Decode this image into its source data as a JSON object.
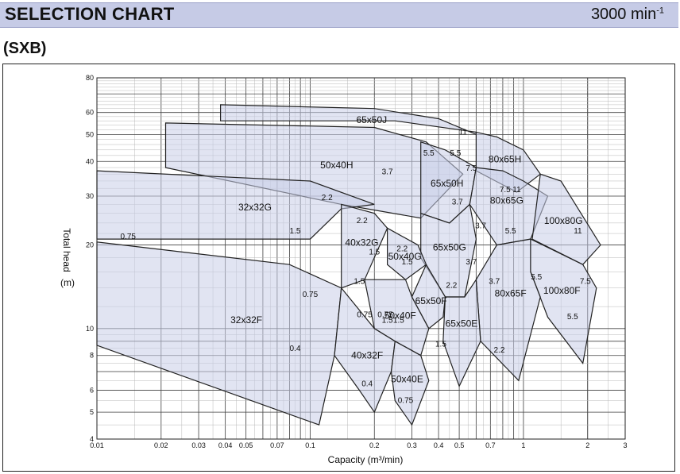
{
  "header": {
    "title": "SELECTION CHART",
    "speed_base": "3000 min",
    "speed_exp": "-1"
  },
  "subtitle": "(SXB)",
  "chart_data": {
    "type": "area",
    "xlabel": "Capacity (m³/min)",
    "ylabel": "Total head",
    "ylabel_unit": "(m)",
    "xscale": "log",
    "yscale": "log",
    "xlim": [
      0.01,
      3
    ],
    "ylim": [
      4,
      80
    ],
    "grid": true,
    "x_ticks": [
      "0.01",
      "0.02",
      "0.03",
      "0.04",
      "0.05",
      "0.07",
      "0.1",
      "0.2",
      "0.3",
      "0.4",
      "0.5",
      "0.7",
      "1",
      "2",
      "3"
    ],
    "x_tick_values": [
      0.01,
      0.02,
      0.03,
      0.04,
      0.05,
      0.07,
      0.1,
      0.2,
      0.3,
      0.4,
      0.5,
      0.7,
      1,
      2,
      3
    ],
    "y_ticks": [
      "4",
      "5",
      "6",
      "8",
      "10",
      "20",
      "30",
      "40",
      "50",
      "60",
      "80"
    ],
    "y_tick_values": [
      4,
      5,
      6,
      8,
      10,
      20,
      30,
      40,
      50,
      60,
      80
    ],
    "regions": [
      {
        "name": "65x50J",
        "vertices": [
          [
            0.038,
            64
          ],
          [
            0.2,
            62
          ],
          [
            0.4,
            57
          ],
          [
            0.6,
            50
          ],
          [
            0.6,
            51
          ],
          [
            0.25,
            56
          ],
          [
            0.038,
            56
          ]
        ]
      },
      {
        "name": "50x40H",
        "vertices": [
          [
            0.021,
            55
          ],
          [
            0.2,
            53
          ],
          [
            0.35,
            47
          ],
          [
            0.52,
            36
          ],
          [
            0.33,
            25
          ],
          [
            0.14,
            28
          ],
          [
            0.021,
            38
          ]
        ]
      },
      {
        "name": "32x32G",
        "vertices": [
          [
            0.01,
            37
          ],
          [
            0.1,
            34
          ],
          [
            0.2,
            28
          ],
          [
            0.14,
            27
          ],
          [
            0.1,
            21
          ],
          [
            0.01,
            21
          ]
        ]
      },
      {
        "name": "65x50H",
        "vertices": [
          [
            0.33,
            47
          ],
          [
            0.43,
            44
          ],
          [
            0.6,
            38
          ],
          [
            0.56,
            28
          ],
          [
            0.45,
            24
          ],
          [
            0.33,
            26
          ]
        ]
      },
      {
        "name": "80x65H",
        "vertices": [
          [
            0.6,
            51
          ],
          [
            0.75,
            49
          ],
          [
            1.0,
            44
          ],
          [
            1.2,
            36
          ],
          [
            0.93,
            31
          ],
          [
            0.6,
            37
          ]
        ]
      },
      {
        "name": "80x65G",
        "vertices": [
          [
            0.6,
            38
          ],
          [
            0.8,
            37
          ],
          [
            1.0,
            34
          ],
          [
            1.3,
            30
          ],
          [
            1.08,
            21
          ],
          [
            0.75,
            20
          ],
          [
            0.56,
            28
          ]
        ]
      },
      {
        "name": "65x50G",
        "vertices": [
          [
            0.33,
            26
          ],
          [
            0.45,
            24
          ],
          [
            0.56,
            28
          ],
          [
            0.6,
            21
          ],
          [
            0.53,
            13
          ],
          [
            0.43,
            13
          ],
          [
            0.33,
            18
          ]
        ]
      },
      {
        "name": "100x80G",
        "vertices": [
          [
            1.2,
            36
          ],
          [
            1.5,
            34
          ],
          [
            2.3,
            20
          ],
          [
            1.9,
            17
          ],
          [
            1.1,
            21
          ]
        ]
      },
      {
        "name": "100x80F",
        "vertices": [
          [
            1.08,
            21
          ],
          [
            1.9,
            17
          ],
          [
            2.2,
            14
          ],
          [
            1.9,
            7.5
          ],
          [
            1.3,
            11
          ],
          [
            1.08,
            16
          ]
        ]
      },
      {
        "name": "80x65F",
        "vertices": [
          [
            0.75,
            20
          ],
          [
            1.08,
            21
          ],
          [
            1.08,
            16
          ],
          [
            1.2,
            13
          ],
          [
            0.95,
            6.5
          ],
          [
            0.63,
            9
          ],
          [
            0.6,
            15
          ]
        ]
      },
      {
        "name": "65x50E",
        "vertices": [
          [
            0.43,
            13
          ],
          [
            0.53,
            13
          ],
          [
            0.6,
            15
          ],
          [
            0.63,
            9
          ],
          [
            0.5,
            6.2
          ],
          [
            0.42,
            9
          ]
        ]
      },
      {
        "name": "40x32G",
        "vertices": [
          [
            0.14,
            28
          ],
          [
            0.2,
            26
          ],
          [
            0.23,
            23
          ],
          [
            0.18,
            15
          ],
          [
            0.14,
            14
          ]
        ]
      },
      {
        "name": "50x40G",
        "vertices": [
          [
            0.23,
            23
          ],
          [
            0.32,
            20
          ],
          [
            0.35,
            17
          ],
          [
            0.28,
            15
          ],
          [
            0.23,
            17
          ]
        ]
      },
      {
        "name": "65x50F",
        "vertices": [
          [
            0.35,
            17
          ],
          [
            0.43,
            13
          ],
          [
            0.42,
            11
          ],
          [
            0.36,
            10
          ],
          [
            0.3,
            13
          ]
        ]
      },
      {
        "name": "50x40F",
        "vertices": [
          [
            0.18,
            15
          ],
          [
            0.28,
            15
          ],
          [
            0.3,
            13
          ],
          [
            0.36,
            10
          ],
          [
            0.33,
            8
          ],
          [
            0.25,
            9
          ],
          [
            0.2,
            10
          ]
        ]
      },
      {
        "name": "32x32F",
        "vertices": [
          [
            0.01,
            20.5
          ],
          [
            0.08,
            17
          ],
          [
            0.14,
            14
          ],
          [
            0.13,
            8
          ],
          [
            0.11,
            4.5
          ],
          [
            0.01,
            8.7
          ]
        ]
      },
      {
        "name": "40x32F",
        "vertices": [
          [
            0.14,
            14
          ],
          [
            0.2,
            10
          ],
          [
            0.25,
            9
          ],
          [
            0.24,
            7
          ],
          [
            0.2,
            5
          ],
          [
            0.17,
            6
          ],
          [
            0.13,
            8
          ]
        ]
      },
      {
        "name": "50x40E",
        "vertices": [
          [
            0.25,
            9
          ],
          [
            0.33,
            8
          ],
          [
            0.36,
            6.5
          ],
          [
            0.3,
            4.5
          ],
          [
            0.25,
            5.5
          ],
          [
            0.24,
            7
          ]
        ]
      }
    ],
    "motor_labels": [
      {
        "kw": "11",
        "x": 0.52,
        "y": 50
      },
      {
        "kw": "5.5",
        "x": 0.36,
        "y": 42
      },
      {
        "kw": "3.7",
        "x": 0.23,
        "y": 36
      },
      {
        "kw": "5.5",
        "x": 0.48,
        "y": 42
      },
      {
        "kw": "7.5",
        "x": 0.57,
        "y": 37
      },
      {
        "kw": "3.7",
        "x": 0.49,
        "y": 28
      },
      {
        "kw": "2.2",
        "x": 0.12,
        "y": 29
      },
      {
        "kw": "1.5",
        "x": 0.085,
        "y": 22
      },
      {
        "kw": "0.75",
        "x": 0.014,
        "y": 21
      },
      {
        "kw": "0.75",
        "x": 0.1,
        "y": 13
      },
      {
        "kw": "0.4",
        "x": 0.085,
        "y": 8.3
      },
      {
        "kw": "2.2",
        "x": 0.175,
        "y": 24
      },
      {
        "kw": "1.5",
        "x": 0.2,
        "y": 18.5
      },
      {
        "kw": "2.2",
        "x": 0.27,
        "y": 19
      },
      {
        "kw": "1.5",
        "x": 0.285,
        "y": 17
      },
      {
        "kw": "1.5",
        "x": 0.17,
        "y": 14.5
      },
      {
        "kw": "0.75",
        "x": 0.18,
        "y": 11
      },
      {
        "kw": "0.75",
        "x": 0.225,
        "y": 11
      },
      {
        "kw": "1.5",
        "x": 0.23,
        "y": 10.5
      },
      {
        "kw": "1.5",
        "x": 0.26,
        "y": 10.5
      },
      {
        "kw": "0.4",
        "x": 0.185,
        "y": 6.2
      },
      {
        "kw": "0.75",
        "x": 0.28,
        "y": 5.4
      },
      {
        "kw": "2.2",
        "x": 0.46,
        "y": 14
      },
      {
        "kw": "3.7",
        "x": 0.57,
        "y": 17
      },
      {
        "kw": "3.7",
        "x": 0.63,
        "y": 23
      },
      {
        "kw": "1.5",
        "x": 0.41,
        "y": 8.6
      },
      {
        "kw": "11",
        "x": 0.93,
        "y": 31
      },
      {
        "kw": "7.5",
        "x": 0.82,
        "y": 31
      },
      {
        "kw": "5.5",
        "x": 0.87,
        "y": 22
      },
      {
        "kw": "3.7",
        "x": 0.73,
        "y": 14.5
      },
      {
        "kw": "2.2",
        "x": 0.77,
        "y": 8.2
      },
      {
        "kw": "11",
        "x": 1.8,
        "y": 22
      },
      {
        "kw": "7.5",
        "x": 1.95,
        "y": 14.5
      },
      {
        "kw": "5.5",
        "x": 1.7,
        "y": 10.8
      },
      {
        "kw": "5.5",
        "x": 1.15,
        "y": 15
      }
    ]
  }
}
